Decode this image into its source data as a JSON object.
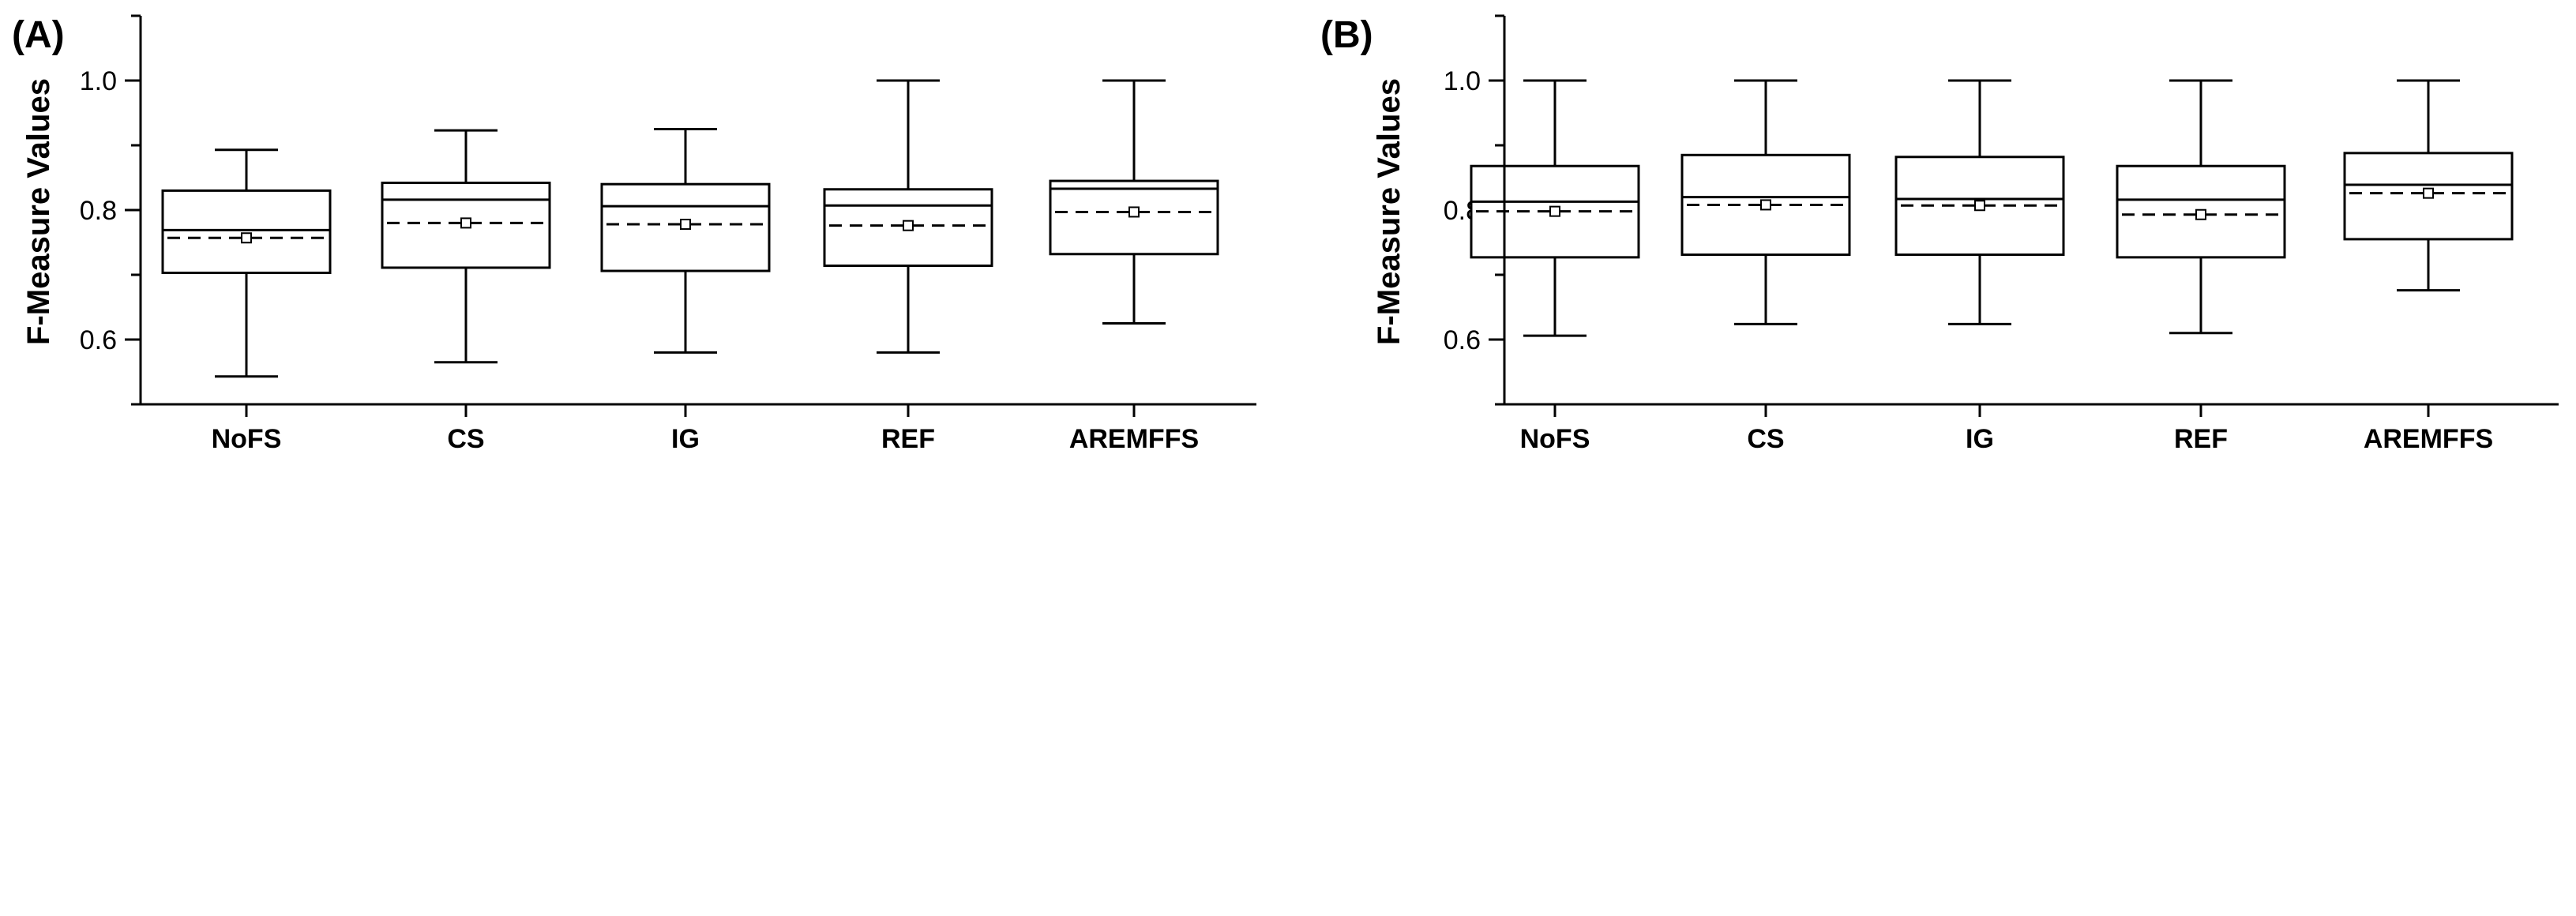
{
  "chart_data": [
    {
      "type": "box",
      "panel_label": "(A)",
      "ylabel": "F-Measure Values",
      "xlabel": "",
      "ylim": [
        0.5,
        1.1
      ],
      "yticks": [
        0.6,
        0.8,
        1.0
      ],
      "ytick_labels": [
        "0.6",
        "0.8",
        "1.0"
      ],
      "categories": [
        "NoFS",
        "CS",
        "IG",
        "REF",
        "AREMFFS"
      ],
      "boxes": [
        {
          "min": 0.543,
          "q1": 0.703,
          "median": 0.769,
          "q3": 0.83,
          "max": 0.893,
          "mean": 0.757
        },
        {
          "min": 0.565,
          "q1": 0.711,
          "median": 0.816,
          "q3": 0.842,
          "max": 0.923,
          "mean": 0.78
        },
        {
          "min": 0.58,
          "q1": 0.706,
          "median": 0.806,
          "q3": 0.84,
          "max": 0.925,
          "mean": 0.778
        },
        {
          "min": 0.58,
          "q1": 0.714,
          "median": 0.807,
          "q3": 0.832,
          "max": 1.0,
          "mean": 0.776
        },
        {
          "min": 0.625,
          "q1": 0.732,
          "median": 0.833,
          "q3": 0.845,
          "max": 1.0,
          "mean": 0.797
        }
      ]
    },
    {
      "type": "box",
      "panel_label": "(B)",
      "ylabel": "F-Measure Values",
      "xlabel": "",
      "ylim": [
        0.5,
        1.1
      ],
      "yticks": [
        0.6,
        0.8,
        1.0
      ],
      "ytick_labels": [
        "0.6",
        "0.8",
        "1.0"
      ],
      "categories": [
        "NoFS",
        "CS",
        "IG",
        "REF",
        "AREMFFS"
      ],
      "boxes": [
        {
          "min": 0.606,
          "q1": 0.727,
          "median": 0.813,
          "q3": 0.868,
          "max": 1.0,
          "mean": 0.798
        },
        {
          "min": 0.624,
          "q1": 0.731,
          "median": 0.82,
          "q3": 0.885,
          "max": 1.0,
          "mean": 0.808
        },
        {
          "min": 0.624,
          "q1": 0.731,
          "median": 0.817,
          "q3": 0.882,
          "max": 1.0,
          "mean": 0.807
        },
        {
          "min": 0.61,
          "q1": 0.727,
          "median": 0.816,
          "q3": 0.868,
          "max": 1.0,
          "mean": 0.793
        },
        {
          "min": 0.676,
          "q1": 0.755,
          "median": 0.839,
          "q3": 0.888,
          "max": 1.0,
          "mean": 0.826
        }
      ]
    }
  ]
}
